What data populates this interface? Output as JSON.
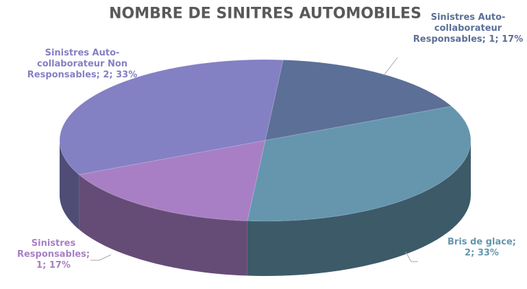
{
  "chart_data": {
    "type": "pie3d",
    "title": "NOMBRE DE SINITRES AUTOMOBILES",
    "values": [
      1,
      2,
      1,
      2
    ],
    "value_labels": [
      "Sinistres Auto-collaborateur Responsables; 1; 17%",
      "Bris de glace; 2; 33%",
      "Sinistres Responsables; 1; 17%",
      "Sinistres Auto-collaborateur Non Responsables; 2; 33%"
    ],
    "colors": [
      "#5b6f97",
      "#6596ae",
      "#a87fc4",
      "#8480c4"
    ]
  }
}
